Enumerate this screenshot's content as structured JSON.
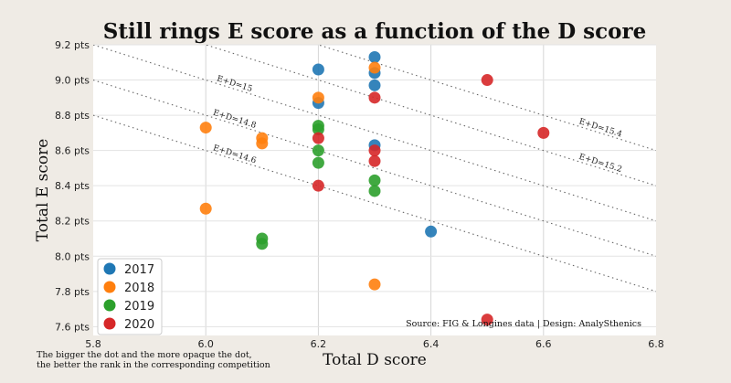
{
  "chart_data": {
    "type": "scatter",
    "title": "Still rings E score as a function of the D score",
    "xlabel": "Total D score",
    "ylabel": "Total E score",
    "xlim": [
      5.8,
      6.8
    ],
    "ylim": [
      7.55,
      9.2
    ],
    "x_ticks": [
      "5.8",
      "6.0",
      "6.2",
      "6.4",
      "6.6",
      "6.8"
    ],
    "y_ticks": [
      "7.6 pts",
      "7.8 pts",
      "8.0 pts",
      "8.2 pts",
      "8.4 pts",
      "8.6 pts",
      "8.8 pts",
      "9.0 pts",
      "9.2 pts"
    ],
    "grid": true,
    "legend_position": "bottom-left",
    "reference_lines": [
      {
        "label": "E+D=15",
        "sum": 15.0
      },
      {
        "label": "E+D=14.8",
        "sum": 14.8
      },
      {
        "label": "E+D=14.6",
        "sum": 14.6
      },
      {
        "label": "E+D=15.4",
        "sum": 15.4
      },
      {
        "label": "E+D=15.2",
        "sum": 15.2
      }
    ],
    "series": [
      {
        "name": "2017",
        "color": "#1f77b4",
        "points": [
          {
            "x": 6.2,
            "y": 9.06
          },
          {
            "x": 6.2,
            "y": 8.87
          },
          {
            "x": 6.3,
            "y": 9.13
          },
          {
            "x": 6.3,
            "y": 9.04
          },
          {
            "x": 6.3,
            "y": 8.97
          },
          {
            "x": 6.3,
            "y": 8.63
          },
          {
            "x": 6.4,
            "y": 8.14
          }
        ]
      },
      {
        "name": "2018",
        "color": "#ff7f0e",
        "points": [
          {
            "x": 6.0,
            "y": 8.73
          },
          {
            "x": 6.0,
            "y": 8.27
          },
          {
            "x": 6.1,
            "y": 8.67
          },
          {
            "x": 6.1,
            "y": 8.64
          },
          {
            "x": 6.2,
            "y": 8.9
          },
          {
            "x": 6.3,
            "y": 9.07
          },
          {
            "x": 6.3,
            "y": 7.84
          }
        ]
      },
      {
        "name": "2019",
        "color": "#2ca02c",
        "points": [
          {
            "x": 6.1,
            "y": 8.1
          },
          {
            "x": 6.1,
            "y": 8.07
          },
          {
            "x": 6.2,
            "y": 8.74
          },
          {
            "x": 6.2,
            "y": 8.72
          },
          {
            "x": 6.2,
            "y": 8.6
          },
          {
            "x": 6.2,
            "y": 8.53
          },
          {
            "x": 6.3,
            "y": 8.43
          },
          {
            "x": 6.3,
            "y": 8.37
          }
        ]
      },
      {
        "name": "2020",
        "color": "#d62728",
        "points": [
          {
            "x": 6.2,
            "y": 8.67
          },
          {
            "x": 6.2,
            "y": 8.4
          },
          {
            "x": 6.3,
            "y": 8.9
          },
          {
            "x": 6.3,
            "y": 8.6
          },
          {
            "x": 6.3,
            "y": 8.54
          },
          {
            "x": 6.5,
            "y": 9.0
          },
          {
            "x": 6.5,
            "y": 7.64
          },
          {
            "x": 6.6,
            "y": 8.7
          }
        ]
      }
    ],
    "source": "Source: FIG & Longines data  |  Design: AnalySthenics",
    "note": [
      "The bigger the dot and the more opaque the dot,",
      "the better the rank in the corresponding competition"
    ]
  }
}
